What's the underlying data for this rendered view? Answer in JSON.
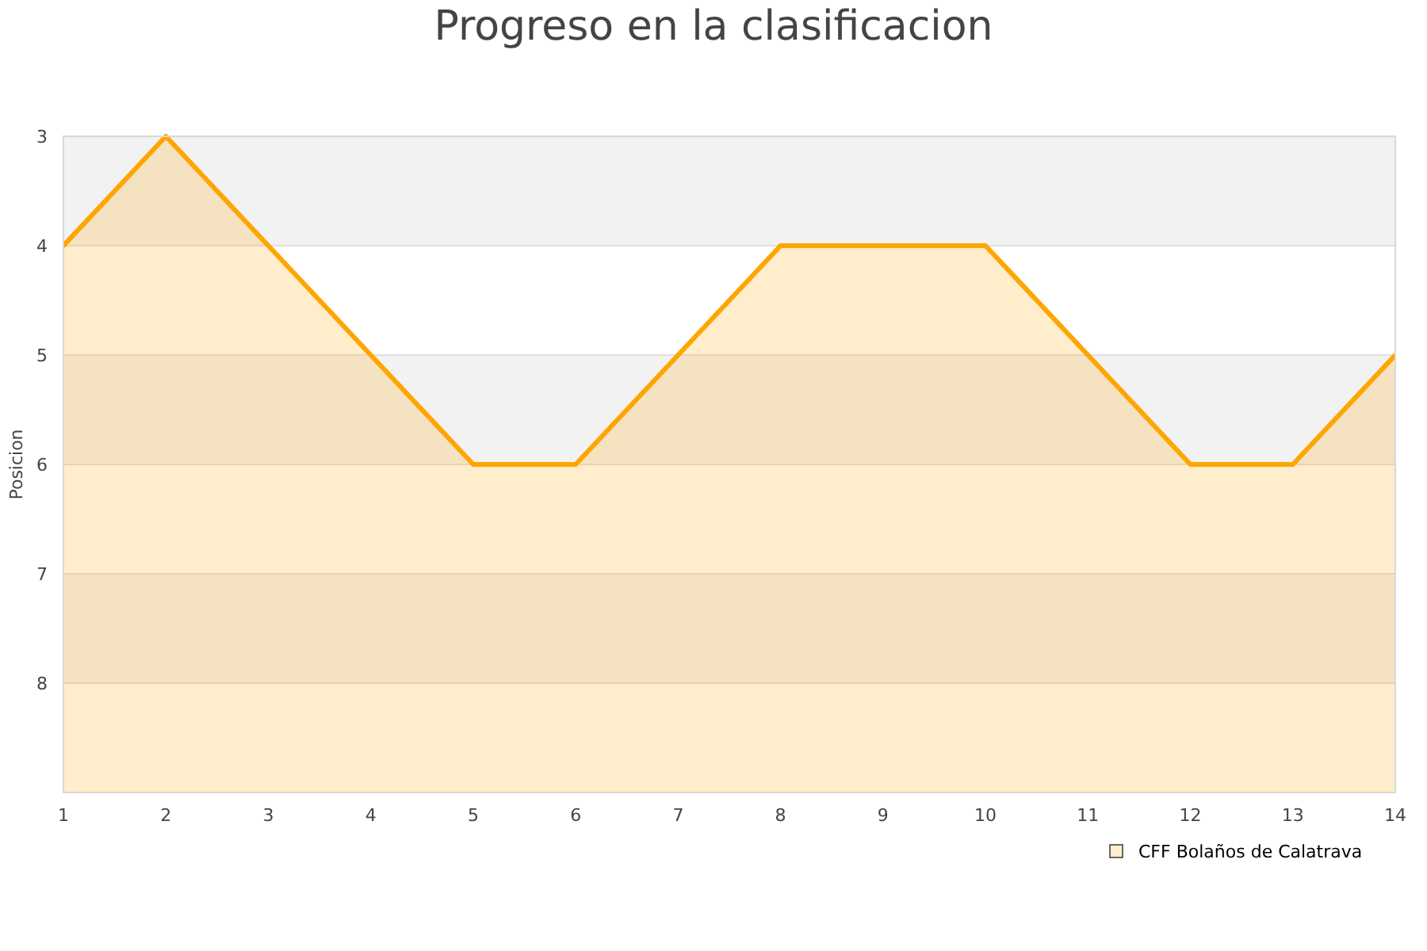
{
  "chart_data": {
    "type": "area",
    "title": "Progreso en la clasificacion",
    "ylabel": "Posicion",
    "x": [
      1,
      2,
      3,
      4,
      5,
      6,
      7,
      8,
      9,
      10,
      11,
      12,
      13,
      14
    ],
    "series": [
      {
        "name": "CFF Bolaños de Calatrava",
        "color": "#ffa500",
        "values": [
          4,
          3,
          4,
          5,
          6,
          6,
          5,
          4,
          4,
          4,
          5,
          6,
          6,
          5
        ]
      }
    ],
    "xlim": [
      1,
      14
    ],
    "xticks": [
      1,
      2,
      3,
      4,
      5,
      6,
      7,
      8,
      9,
      10,
      11,
      12,
      13,
      14
    ],
    "ylim": [
      9,
      3
    ],
    "yticks": [
      3,
      4,
      5,
      6,
      7,
      8
    ],
    "bands": [
      {
        "axis": "y",
        "from": 3,
        "to": 4,
        "color": "#f2f2f2"
      },
      {
        "axis": "y",
        "from": 5,
        "to": 6,
        "color": "#f2f2f2"
      },
      {
        "axis": "y",
        "from": 7,
        "to": 8,
        "color": "#f2f2f2"
      }
    ],
    "grid": "y",
    "legend": "bottom right"
  }
}
